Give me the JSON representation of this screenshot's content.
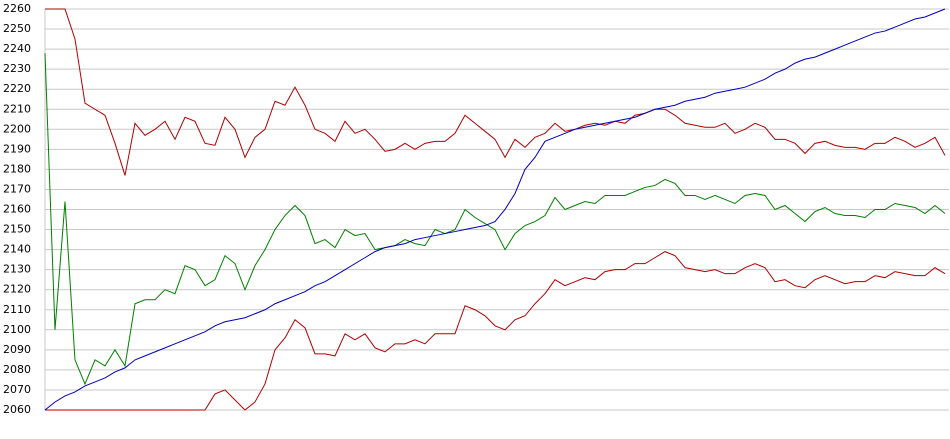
{
  "chart_data": {
    "type": "line",
    "ylim": [
      2060,
      2260
    ],
    "yticks": [
      2060,
      2070,
      2080,
      2090,
      2100,
      2110,
      2120,
      2130,
      2140,
      2150,
      2160,
      2170,
      2180,
      2190,
      2200,
      2210,
      2220,
      2230,
      2240,
      2250,
      2260
    ],
    "grid": true,
    "series": [
      {
        "color": "#b00000",
        "values": [
          2260,
          2260,
          2260,
          2245,
          2213,
          2210,
          2207,
          2193,
          2177,
          2203,
          2197,
          2200,
          2204,
          2195,
          2206,
          2204,
          2193,
          2192,
          2206,
          2200,
          2186,
          2196,
          2200,
          2214,
          2212,
          2221,
          2212,
          2200,
          2198,
          2194,
          2204,
          2198,
          2200,
          2195,
          2189,
          2190,
          2193,
          2190,
          2193,
          2194,
          2194,
          2198,
          2207,
          2203,
          2199,
          2195,
          2186,
          2195,
          2191,
          2196,
          2198,
          2203,
          2199,
          2200,
          2202,
          2203,
          2202,
          2204,
          2203,
          2207,
          2208,
          2210,
          2210,
          2207,
          2203,
          2202,
          2201,
          2201,
          2203,
          2198,
          2200,
          2203,
          2201,
          2195,
          2195,
          2193,
          2188,
          2193,
          2194,
          2192,
          2191,
          2191,
          2190,
          2193,
          2193,
          2196,
          2194,
          2191,
          2193,
          2196,
          2187
        ]
      },
      {
        "color": "#008000",
        "values": [
          2238,
          2100,
          2164,
          2085,
          2073,
          2085,
          2082,
          2090,
          2082,
          2113,
          2115,
          2115,
          2120,
          2118,
          2132,
          2130,
          2122,
          2125,
          2137,
          2133,
          2120,
          2132,
          2140,
          2150,
          2157,
          2162,
          2157,
          2143,
          2145,
          2141,
          2150,
          2147,
          2148,
          2140,
          2141,
          2142,
          2145,
          2143,
          2142,
          2150,
          2148,
          2150,
          2160,
          2156,
          2153,
          2150,
          2140,
          2148,
          2152,
          2154,
          2157,
          2166,
          2160,
          2162,
          2164,
          2163,
          2167,
          2167,
          2167,
          2169,
          2171,
          2172,
          2175,
          2173,
          2167,
          2167,
          2165,
          2167,
          2165,
          2163,
          2167,
          2168,
          2167,
          2160,
          2162,
          2158,
          2154,
          2159,
          2161,
          2158,
          2157,
          2157,
          2156,
          2160,
          2160,
          2163,
          2162,
          2161,
          2158,
          2162,
          2158
        ]
      },
      {
        "color": "#b00000",
        "values": [
          2060,
          2060,
          2060,
          2060,
          2060,
          2060,
          2060,
          2060,
          2060,
          2060,
          2060,
          2060,
          2060,
          2060,
          2060,
          2060,
          2060,
          2068,
          2070,
          2065,
          2060,
          2064,
          2073,
          2090,
          2096,
          2105,
          2101,
          2088,
          2088,
          2087,
          2098,
          2095,
          2098,
          2091,
          2089,
          2093,
          2093,
          2095,
          2093,
          2098,
          2098,
          2098,
          2112,
          2110,
          2107,
          2102,
          2100,
          2105,
          2107,
          2113,
          2118,
          2125,
          2122,
          2124,
          2126,
          2125,
          2129,
          2130,
          2130,
          2133,
          2133,
          2136,
          2139,
          2137,
          2131,
          2130,
          2129,
          2130,
          2128,
          2128,
          2131,
          2133,
          2131,
          2124,
          2125,
          2122,
          2121,
          2125,
          2127,
          2125,
          2123,
          2124,
          2124,
          2127,
          2126,
          2129,
          2128,
          2127,
          2127,
          2131,
          2128
        ]
      },
      {
        "color": "#0000c0",
        "values": [
          2060,
          2064,
          2067,
          2069,
          2072,
          2074,
          2076,
          2079,
          2081,
          2085,
          2087,
          2089,
          2091,
          2093,
          2095,
          2097,
          2099,
          2102,
          2104,
          2105,
          2106,
          2108,
          2110,
          2113,
          2115,
          2117,
          2119,
          2122,
          2124,
          2127,
          2130,
          2133,
          2136,
          2139,
          2141,
          2142,
          2143,
          2145,
          2146,
          2147,
          2148,
          2149,
          2150,
          2151,
          2152,
          2154,
          2160,
          2168,
          2180,
          2186,
          2194,
          2196,
          2198,
          2200,
          2201,
          2202,
          2203,
          2204,
          2205,
          2206,
          2208,
          2210,
          2211,
          2212,
          2214,
          2215,
          2216,
          2218,
          2219,
          2220,
          2221,
          2223,
          2225,
          2228,
          2230,
          2233,
          2235,
          2236,
          2238,
          2240,
          2242,
          2244,
          2246,
          2248,
          2249,
          2251,
          2253,
          2255,
          2256,
          2258,
          2260
        ]
      }
    ]
  }
}
